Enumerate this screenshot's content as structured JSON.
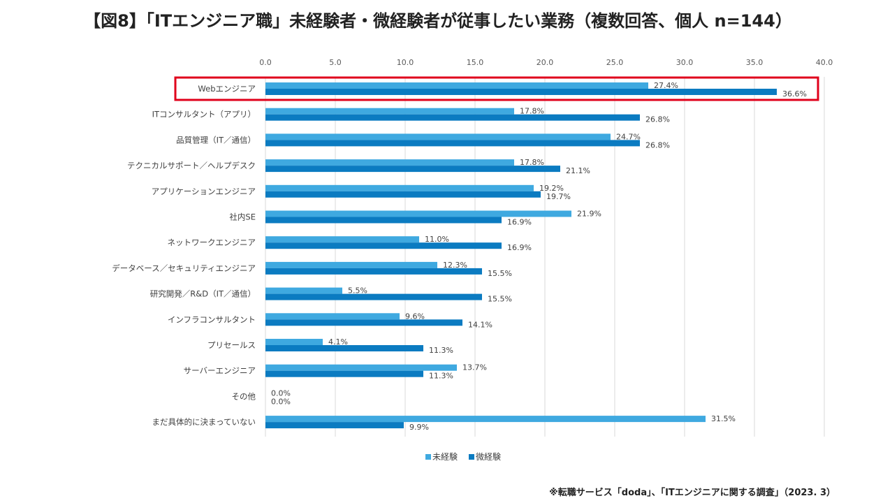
{
  "title": "【図8】「ITエンジニア職」未経験者・微経験者が従事したい業務（複数回答、個人 n=144）",
  "source": "※転職サービス「doda」、「ITエンジニアに関する調査」（2023. 3）",
  "colors": {
    "series_1": "#3fa9e0",
    "series_2": "#0b7bc1",
    "highlight_box": "#e0001b",
    "grid": "#d9d9d9"
  },
  "chart_data": {
    "type": "bar",
    "orientation": "horizontal",
    "xlim": [
      0,
      40
    ],
    "ticks": [
      "0.0",
      "5.0",
      "10.0",
      "15.0",
      "20.0",
      "25.0",
      "30.0",
      "35.0",
      "40.0"
    ],
    "tick_values": [
      0,
      5,
      10,
      15,
      20,
      25,
      30,
      35,
      40
    ],
    "grid": true,
    "legend_position": "bottom",
    "highlighted_category": "Webエンジニア",
    "categories": [
      "Webエンジニア",
      "ITコンサルタント（アプリ）",
      "品質管理（IT／通信）",
      "テクニカルサポート／ヘルプデスク",
      "アプリケーションエンジニア",
      "社内SE",
      "ネットワークエンジニア",
      "データベース／セキュリティエンジニア",
      "研究開発／R&D（IT／通信）",
      "インフラコンサルタント",
      "プリセールス",
      "サーバーエンジニア",
      "その他",
      "まだ具体的に決まっていない"
    ],
    "series": [
      {
        "name": "未経験",
        "values": [
          27.4,
          17.8,
          24.7,
          17.8,
          19.2,
          21.9,
          11.0,
          12.3,
          5.5,
          9.6,
          4.1,
          13.7,
          0.0,
          31.5
        ],
        "labels": [
          "27.4%",
          "17.8%",
          "24.7%",
          "17.8%",
          "19.2%",
          "21.9%",
          "11.0%",
          "12.3%",
          "5.5%",
          "9.6%",
          "4.1%",
          "13.7%",
          "0.0%",
          "31.5%"
        ]
      },
      {
        "name": "微経験",
        "values": [
          36.6,
          26.8,
          26.8,
          21.1,
          19.7,
          16.9,
          16.9,
          15.5,
          15.5,
          14.1,
          11.3,
          11.3,
          0.0,
          9.9
        ],
        "labels": [
          "36.6%",
          "26.8%",
          "26.8%",
          "21.1%",
          "19.7%",
          "16.9%",
          "16.9%",
          "15.5%",
          "15.5%",
          "14.1%",
          "11.3%",
          "11.3%",
          "0.0%",
          "9.9%"
        ]
      }
    ]
  }
}
